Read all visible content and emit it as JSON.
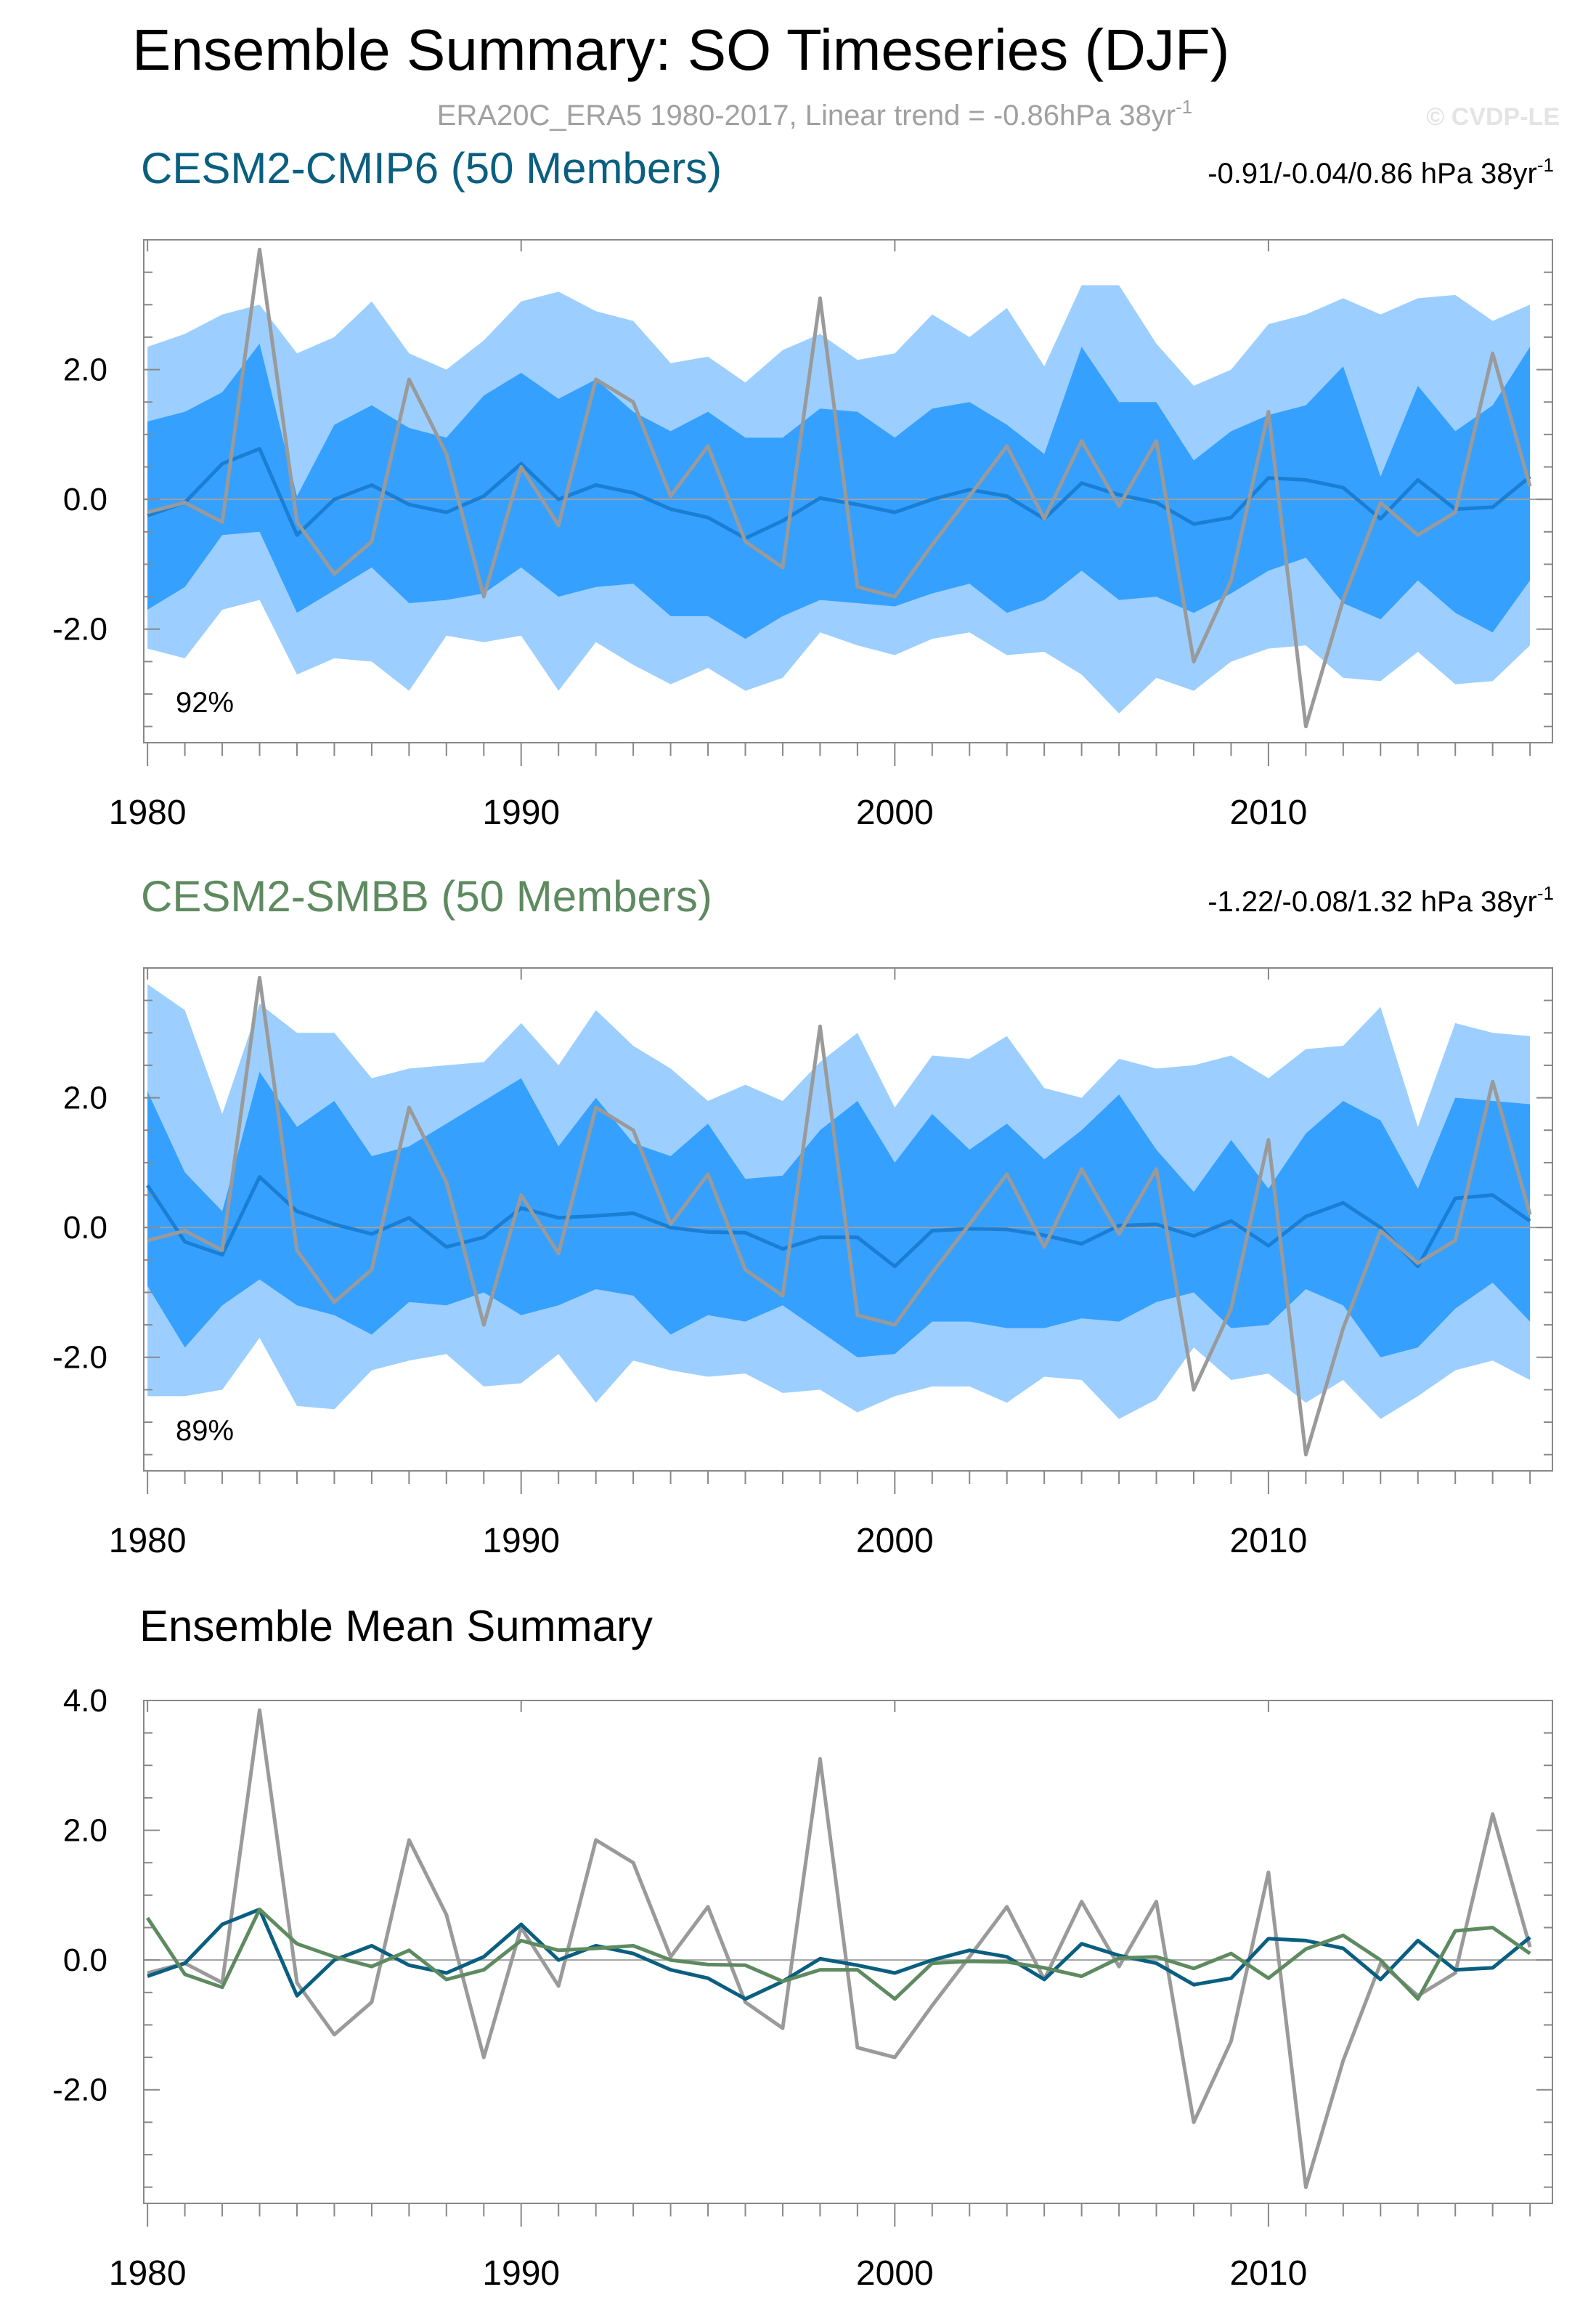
{
  "title": "Ensemble Summary: SO Timeseries (DJF)",
  "subtitle": {
    "text": "ERA20C_ERA5 1980-2017, Linear trend = -0.86hPa 38yr",
    "sup": "-1"
  },
  "watermark": "© CVDP-LE",
  "colors": {
    "band_outer": "#9ccfff",
    "band_inner": "#36a0ff",
    "model_mean": "#1a7fd4",
    "obs": "#9a9a9a",
    "cmip6": "#0a5f80",
    "smbb": "#5e8a60",
    "axis": "#888888",
    "text": "#000000"
  },
  "chart_data": [
    {
      "type": "area",
      "title": "CESM2-CMIP6 (50 Members)",
      "trend": {
        "text": "-0.91/-0.04/0.86 hPa 38yr",
        "sup": "-1"
      },
      "corner_label": "92%",
      "xlim": [
        1979.9,
        2017.6
      ],
      "ylim": [
        -3.75,
        4.0
      ],
      "yticks": [
        -2.0,
        0.0,
        2.0
      ],
      "ytick_labels": [
        "-2.0",
        "0.0",
        "2.0"
      ],
      "xticks": [
        1980,
        1990,
        2000,
        2010
      ],
      "xtick_labels": [
        "1980",
        "1990",
        "2000",
        "2010"
      ],
      "x": [
        1980,
        1981,
        1982,
        1983,
        1984,
        1985,
        1986,
        1987,
        1988,
        1989,
        1990,
        1991,
        1992,
        1993,
        1994,
        1995,
        1996,
        1997,
        1998,
        1999,
        2000,
        2001,
        2002,
        2003,
        2004,
        2005,
        2006,
        2007,
        2008,
        2009,
        2010,
        2011,
        2012,
        2013,
        2014,
        2015,
        2016,
        2017
      ],
      "series": [
        {
          "name": "outer_upper",
          "values": [
            2.35,
            2.55,
            2.85,
            3.0,
            2.25,
            2.5,
            3.05,
            2.25,
            2.0,
            2.45,
            3.05,
            3.2,
            2.9,
            2.75,
            2.1,
            2.2,
            1.8,
            2.3,
            2.55,
            2.15,
            2.25,
            2.85,
            2.5,
            2.95,
            2.05,
            3.3,
            3.3,
            2.4,
            1.75,
            2.0,
            2.7,
            2.85,
            3.1,
            2.85,
            3.1,
            3.15,
            2.75,
            3.0
          ]
        },
        {
          "name": "inner_upper",
          "values": [
            1.2,
            1.35,
            1.65,
            2.4,
            0.05,
            1.15,
            1.45,
            1.1,
            0.95,
            1.6,
            1.95,
            1.55,
            1.85,
            1.35,
            1.05,
            1.35,
            0.95,
            0.95,
            1.4,
            1.35,
            0.95,
            1.4,
            1.5,
            1.15,
            0.7,
            2.35,
            1.5,
            1.5,
            0.6,
            1.05,
            1.3,
            1.45,
            2.05,
            0.35,
            1.75,
            1.05,
            1.45,
            2.35
          ]
        },
        {
          "name": "mean",
          "values": [
            -0.25,
            -0.05,
            0.55,
            0.78,
            -0.55,
            0.0,
            0.22,
            -0.08,
            -0.2,
            0.05,
            0.55,
            0.0,
            0.22,
            0.1,
            -0.15,
            -0.28,
            -0.6,
            -0.33,
            0.02,
            -0.08,
            -0.2,
            0.0,
            0.15,
            0.05,
            -0.3,
            0.25,
            0.07,
            -0.05,
            -0.38,
            -0.28,
            0.33,
            0.3,
            0.18,
            -0.3,
            0.3,
            -0.15,
            -0.12,
            0.35
          ]
        },
        {
          "name": "inner_lower",
          "values": [
            -1.7,
            -1.35,
            -0.55,
            -0.5,
            -1.75,
            -1.4,
            -1.05,
            -1.6,
            -1.55,
            -1.45,
            -1.05,
            -1.5,
            -1.35,
            -1.3,
            -1.8,
            -1.8,
            -2.15,
            -1.8,
            -1.55,
            -1.6,
            -1.65,
            -1.45,
            -1.3,
            -1.75,
            -1.55,
            -1.1,
            -1.55,
            -1.5,
            -1.75,
            -1.45,
            -1.1,
            -0.9,
            -1.6,
            -1.85,
            -1.25,
            -1.75,
            -2.05,
            -1.25
          ]
        },
        {
          "name": "outer_lower",
          "values": [
            -2.3,
            -2.45,
            -1.7,
            -1.55,
            -2.7,
            -2.45,
            -2.5,
            -2.95,
            -2.1,
            -2.2,
            -2.1,
            -2.95,
            -2.2,
            -2.55,
            -2.85,
            -2.6,
            -2.95,
            -2.75,
            -2.05,
            -2.25,
            -2.4,
            -2.15,
            -2.05,
            -2.4,
            -2.35,
            -2.7,
            -3.3,
            -2.75,
            -2.95,
            -2.5,
            -2.3,
            -2.25,
            -2.75,
            -2.8,
            -2.35,
            -2.85,
            -2.8,
            -2.25
          ]
        },
        {
          "name": "observed",
          "values": [
            -0.2,
            -0.05,
            -0.35,
            3.85,
            -0.35,
            -1.15,
            -0.65,
            1.85,
            0.7,
            -1.5,
            0.5,
            -0.4,
            1.85,
            1.5,
            0.05,
            0.82,
            -0.65,
            -1.05,
            3.1,
            -1.35,
            -1.5,
            -0.7,
            0.05,
            0.82,
            -0.3,
            0.9,
            -0.1,
            0.9,
            -2.5,
            -1.25,
            1.35,
            -3.5,
            -1.55,
            -0.05,
            -0.55,
            -0.2,
            2.25,
            0.2
          ]
        }
      ]
    },
    {
      "type": "area",
      "title": "CESM2-SMBB (50 Members)",
      "trend": {
        "text": "-1.22/-0.08/1.32 hPa 38yr",
        "sup": "-1"
      },
      "corner_label": "89%",
      "xlim": [
        1979.9,
        2017.6
      ],
      "ylim": [
        -3.75,
        4.0
      ],
      "yticks": [
        -2.0,
        0.0,
        2.0
      ],
      "ytick_labels": [
        "-2.0",
        "0.0",
        "2.0"
      ],
      "xticks": [
        1980,
        1990,
        2000,
        2010
      ],
      "xtick_labels": [
        "1980",
        "1990",
        "2000",
        "2010"
      ],
      "x": [
        1980,
        1981,
        1982,
        1983,
        1984,
        1985,
        1986,
        1987,
        1988,
        1989,
        1990,
        1991,
        1992,
        1993,
        1994,
        1995,
        1996,
        1997,
        1998,
        1999,
        2000,
        2001,
        2002,
        2003,
        2004,
        2005,
        2006,
        2007,
        2008,
        2009,
        2010,
        2011,
        2012,
        2013,
        2014,
        2015,
        2016,
        2017
      ],
      "series": [
        {
          "name": "outer_upper",
          "values": [
            3.75,
            3.35,
            1.75,
            3.45,
            3.0,
            3.0,
            2.3,
            2.45,
            2.5,
            2.55,
            3.15,
            2.5,
            3.35,
            2.8,
            2.45,
            1.95,
            2.2,
            1.95,
            2.55,
            3.0,
            1.85,
            2.65,
            2.6,
            2.95,
            2.15,
            2.0,
            2.6,
            2.45,
            2.5,
            2.65,
            2.3,
            2.75,
            2.8,
            3.4,
            1.55,
            3.15,
            3.0,
            2.95
          ]
        },
        {
          "name": "inner_upper",
          "values": [
            2.1,
            0.85,
            0.25,
            2.4,
            1.55,
            1.95,
            1.1,
            1.25,
            1.6,
            1.95,
            2.3,
            1.25,
            2.0,
            1.3,
            1.1,
            1.6,
            0.75,
            0.8,
            1.5,
            1.95,
            1.0,
            1.75,
            1.2,
            1.6,
            1.05,
            1.5,
            2.05,
            1.2,
            0.55,
            1.35,
            0.6,
            1.45,
            1.95,
            1.65,
            0.6,
            2.0,
            1.95,
            1.9
          ]
        },
        {
          "name": "mean",
          "values": [
            0.65,
            -0.22,
            -0.42,
            0.78,
            0.25,
            0.05,
            -0.1,
            0.15,
            -0.3,
            -0.15,
            0.3,
            0.15,
            0.18,
            0.22,
            0.0,
            -0.07,
            -0.08,
            -0.33,
            -0.15,
            -0.15,
            -0.6,
            -0.05,
            -0.02,
            -0.03,
            -0.12,
            -0.25,
            0.03,
            0.05,
            -0.13,
            0.1,
            -0.28,
            0.17,
            0.38,
            0.0,
            -0.6,
            0.45,
            0.5,
            0.1
          ]
        },
        {
          "name": "inner_lower",
          "values": [
            -0.9,
            -1.85,
            -1.2,
            -0.8,
            -1.2,
            -1.35,
            -1.65,
            -1.15,
            -1.2,
            -1.0,
            -1.35,
            -1.2,
            -0.95,
            -1.05,
            -1.65,
            -1.35,
            -1.45,
            -1.2,
            -1.6,
            -2.0,
            -1.95,
            -1.45,
            -1.45,
            -1.55,
            -1.55,
            -1.4,
            -1.45,
            -1.15,
            -1.0,
            -1.55,
            -1.5,
            -0.95,
            -1.2,
            -2.0,
            -1.85,
            -1.25,
            -0.85,
            -1.45
          ]
        },
        {
          "name": "outer_lower",
          "values": [
            -2.6,
            -2.6,
            -2.5,
            -1.7,
            -2.75,
            -2.8,
            -2.2,
            -2.05,
            -1.95,
            -2.45,
            -2.4,
            -1.95,
            -2.7,
            -2.05,
            -2.2,
            -2.3,
            -2.25,
            -2.55,
            -2.5,
            -2.85,
            -2.6,
            -2.45,
            -2.45,
            -2.7,
            -2.3,
            -2.35,
            -2.95,
            -2.65,
            -1.85,
            -2.35,
            -2.25,
            -2.7,
            -2.35,
            -2.95,
            -2.6,
            -2.2,
            -2.05,
            -2.35
          ]
        },
        {
          "name": "observed",
          "values": [
            -0.2,
            -0.05,
            -0.35,
            3.85,
            -0.35,
            -1.15,
            -0.65,
            1.85,
            0.7,
            -1.5,
            0.5,
            -0.4,
            1.85,
            1.5,
            0.05,
            0.82,
            -0.65,
            -1.05,
            3.1,
            -1.35,
            -1.5,
            -0.7,
            0.05,
            0.82,
            -0.3,
            0.9,
            -0.1,
            0.9,
            -2.5,
            -1.25,
            1.35,
            -3.5,
            -1.55,
            -0.05,
            -0.55,
            -0.2,
            2.25,
            0.2
          ]
        }
      ]
    },
    {
      "type": "line",
      "title": "Ensemble Mean Summary",
      "xlim": [
        1979.9,
        2017.6
      ],
      "ylim": [
        -3.75,
        4.0
      ],
      "yticks": [
        -2.0,
        0.0,
        2.0,
        4.0
      ],
      "ytick_labels": [
        "-2.0",
        "0.0",
        "2.0",
        "4.0"
      ],
      "xticks": [
        1980,
        1990,
        2000,
        2010
      ],
      "xtick_labels": [
        "1980",
        "1990",
        "2000",
        "2010"
      ],
      "x": [
        1980,
        1981,
        1982,
        1983,
        1984,
        1985,
        1986,
        1987,
        1988,
        1989,
        1990,
        1991,
        1992,
        1993,
        1994,
        1995,
        1996,
        1997,
        1998,
        1999,
        2000,
        2001,
        2002,
        2003,
        2004,
        2005,
        2006,
        2007,
        2008,
        2009,
        2010,
        2011,
        2012,
        2013,
        2014,
        2015,
        2016,
        2017
      ],
      "series": [
        {
          "name": "observed",
          "values": [
            -0.2,
            -0.05,
            -0.35,
            3.85,
            -0.35,
            -1.15,
            -0.65,
            1.85,
            0.7,
            -1.5,
            0.5,
            -0.4,
            1.85,
            1.5,
            0.05,
            0.82,
            -0.65,
            -1.05,
            3.1,
            -1.35,
            -1.5,
            -0.7,
            0.05,
            0.82,
            -0.3,
            0.9,
            -0.1,
            0.9,
            -2.5,
            -1.25,
            1.35,
            -3.5,
            -1.55,
            -0.05,
            -0.55,
            -0.2,
            2.25,
            0.2
          ]
        },
        {
          "name": "CESM2-CMIP6",
          "values": [
            -0.25,
            -0.05,
            0.55,
            0.78,
            -0.55,
            0.0,
            0.22,
            -0.08,
            -0.2,
            0.05,
            0.55,
            0.0,
            0.22,
            0.1,
            -0.15,
            -0.28,
            -0.6,
            -0.33,
            0.02,
            -0.08,
            -0.2,
            0.0,
            0.15,
            0.05,
            -0.3,
            0.25,
            0.07,
            -0.05,
            -0.38,
            -0.28,
            0.33,
            0.3,
            0.18,
            -0.3,
            0.3,
            -0.15,
            -0.12,
            0.35
          ]
        },
        {
          "name": "CESM2-SMBB",
          "values": [
            0.65,
            -0.22,
            -0.42,
            0.78,
            0.25,
            0.05,
            -0.1,
            0.15,
            -0.3,
            -0.15,
            0.3,
            0.15,
            0.18,
            0.22,
            0.0,
            -0.07,
            -0.08,
            -0.33,
            -0.15,
            -0.15,
            -0.6,
            -0.05,
            -0.02,
            -0.03,
            -0.12,
            -0.25,
            0.03,
            0.05,
            -0.13,
            0.1,
            -0.28,
            0.17,
            0.38,
            0.0,
            -0.6,
            0.45,
            0.5,
            0.1
          ]
        }
      ]
    }
  ]
}
